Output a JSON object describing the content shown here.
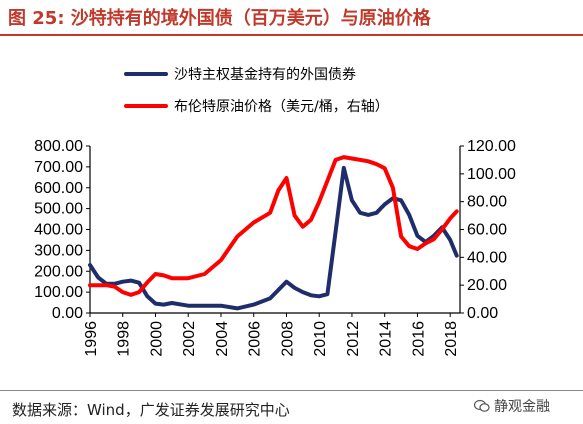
{
  "header": {
    "title": "图 25:  沙特持有的境外国债（百万美元）与原油价格"
  },
  "footer": {
    "source": "数据来源：Wind，广发证券发展研究中心",
    "watermark": "静观金融"
  },
  "colors": {
    "series_holdings": "#1f2d6b",
    "series_oil": "#ff0000",
    "title": "#c0392b"
  },
  "chart_data": {
    "type": "line",
    "title": "",
    "legend_position": "top-center",
    "grid": false,
    "x_ticks": [
      "1996",
      "1998",
      "2000",
      "2002",
      "2004",
      "2006",
      "2008",
      "2010",
      "2012",
      "2014",
      "2016",
      "2018"
    ],
    "xlim": [
      1996,
      2018.6
    ],
    "y_left": {
      "label": "",
      "ticks": [
        "0.00",
        "100.00",
        "200.00",
        "300.00",
        "400.00",
        "500.00",
        "600.00",
        "700.00",
        "800.00"
      ],
      "ylim": [
        0,
        800
      ]
    },
    "y_right": {
      "label": "",
      "ticks": [
        "0.00",
        "20.00",
        "40.00",
        "60.00",
        "80.00",
        "100.00",
        "120.00"
      ],
      "ylim": [
        0,
        120
      ]
    },
    "series": [
      {
        "name": "沙特主权基金持有的外国债券",
        "axis": "left",
        "color": "#1f2d6b",
        "x": [
          1996,
          1996.5,
          1997,
          1997.5,
          1998,
          1998.5,
          1999,
          1999.5,
          2000,
          2000.5,
          2001,
          2002,
          2003,
          2004,
          2005,
          2006,
          2007,
          2008,
          2008.5,
          2009,
          2009.5,
          2010,
          2010.5,
          2011,
          2011.5,
          2012,
          2012.5,
          2013,
          2013.5,
          2014,
          2014.5,
          2015,
          2015.5,
          2016,
          2016.5,
          2017,
          2017.5,
          2018,
          2018.4
        ],
        "y": [
          230,
          170,
          140,
          140,
          150,
          155,
          145,
          80,
          45,
          40,
          48,
          35,
          35,
          35,
          22,
          40,
          70,
          150,
          120,
          100,
          85,
          80,
          90,
          390,
          695,
          540,
          480,
          470,
          480,
          520,
          550,
          540,
          470,
          370,
          340,
          370,
          410,
          350,
          275
        ]
      },
      {
        "name": "布伦特原油价格（美元/桶，右轴）",
        "axis": "right",
        "color": "#ff0000",
        "x": [
          1996,
          1996.5,
          1997,
          1997.5,
          1998,
          1998.5,
          1999,
          1999.5,
          2000,
          2000.5,
          2001,
          2002,
          2003,
          2004,
          2005,
          2006,
          2007,
          2007.5,
          2008,
          2008.5,
          2009,
          2009.5,
          2010,
          2010.5,
          2011,
          2011.5,
          2012,
          2012.5,
          2013,
          2013.5,
          2014,
          2014.5,
          2015,
          2015.5,
          2016,
          2016.5,
          2017,
          2017.5,
          2018,
          2018.4
        ],
        "y": [
          20,
          20,
          20,
          19,
          15,
          13,
          15,
          22,
          28,
          27,
          25,
          25,
          28,
          38,
          55,
          65,
          72,
          88,
          97,
          70,
          62,
          67,
          80,
          95,
          110,
          112,
          111,
          110,
          109,
          107,
          104,
          90,
          55,
          48,
          46,
          50,
          53,
          60,
          68,
          73
        ]
      }
    ]
  }
}
